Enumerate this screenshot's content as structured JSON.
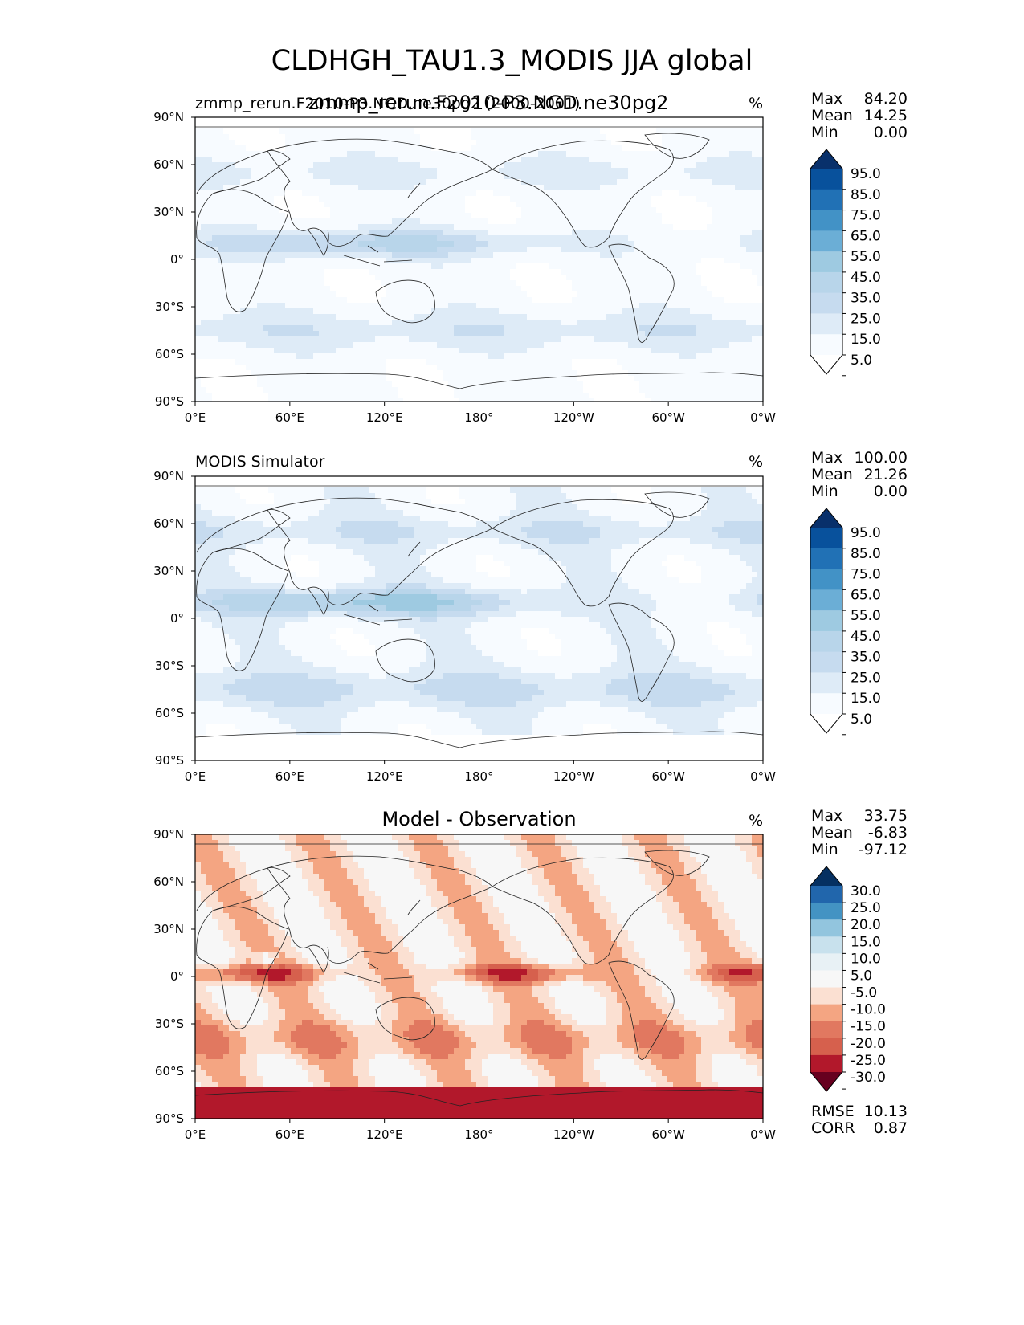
{
  "figure": {
    "title": "CLDHGH_TAU1.3_MODIS JJA global"
  },
  "panels": [
    {
      "id": "test",
      "title_left": "zmmp_rerun.F2010-P3.NGD.ne30pg2 (2000-2001)",
      "title_overlay": "zmmp_rerun.F2010-P3.NGD.ne30pg2",
      "title_center": "",
      "units": "%",
      "stats": {
        "max_label": "Max",
        "max": "84.20",
        "mean_label": "Mean",
        "mean": "14.25",
        "min_label": "Min",
        "min": "0.00"
      },
      "colorbar": {
        "levels": [
          "95.0",
          "85.0",
          "75.0",
          "65.0",
          "55.0",
          "45.0",
          "35.0",
          "25.0",
          "15.0",
          "5.0"
        ],
        "colors": [
          "#08306b",
          "#08519c",
          "#2171b5",
          "#4292c6",
          "#6baed6",
          "#9ecae1",
          "#b8d5ea",
          "#c6dbef",
          "#deebf7",
          "#f7fbff",
          "#ffffff"
        ]
      }
    },
    {
      "id": "reference",
      "title_left": "MODIS Simulator",
      "title_center": "",
      "units": "%",
      "stats": {
        "max_label": "Max",
        "max": "100.00",
        "mean_label": "Mean",
        "mean": "21.26",
        "min_label": "Min",
        "min": "0.00"
      },
      "colorbar": {
        "levels": [
          "95.0",
          "85.0",
          "75.0",
          "65.0",
          "55.0",
          "45.0",
          "35.0",
          "25.0",
          "15.0",
          "5.0"
        ],
        "colors": [
          "#08306b",
          "#08519c",
          "#2171b5",
          "#4292c6",
          "#6baed6",
          "#9ecae1",
          "#b8d5ea",
          "#c6dbef",
          "#deebf7",
          "#f7fbff",
          "#ffffff"
        ]
      }
    },
    {
      "id": "difference",
      "title_left": "",
      "title_center": "Model - Observation",
      "units": "%",
      "stats": {
        "max_label": "Max",
        "max": "33.75",
        "mean_label": "Mean",
        "mean": "-6.83",
        "min_label": "Min",
        "min": "-97.12"
      },
      "metrics": {
        "rmse_label": "RMSE",
        "rmse": "10.13",
        "corr_label": "CORR",
        "corr": "0.87"
      },
      "colorbar": {
        "levels": [
          "30.0",
          "25.0",
          "20.0",
          "15.0",
          "10.0",
          "5.0",
          "-5.0",
          "-10.0",
          "-15.0",
          "-20.0",
          "-25.0",
          "-30.0"
        ],
        "colors": [
          "#053061",
          "#2166ac",
          "#4393c3",
          "#92c5de",
          "#c8e1ed",
          "#e8f1f5",
          "#f7f7f7",
          "#fbe0d2",
          "#f4a582",
          "#e17860",
          "#d6604d",
          "#b2182b",
          "#67001f"
        ]
      }
    }
  ],
  "axes": {
    "x_ticks": [
      "0°E",
      "60°E",
      "120°E",
      "180°",
      "120°W",
      "60°W",
      "0°W"
    ],
    "y_ticks": [
      "90°N",
      "60°N",
      "30°N",
      "0°",
      "30°S",
      "60°S",
      "90°S"
    ]
  },
  "chart_data": [
    {
      "type": "heatmap",
      "title": "zmmp_rerun.F2010-P3.NGD.ne30pg2 (2000-2001)",
      "units": "%",
      "x_range": [
        0,
        360
      ],
      "y_range": [
        -90,
        90
      ],
      "levels": [
        5,
        15,
        25,
        35,
        45,
        55,
        65,
        75,
        85,
        95
      ],
      "max": 84.2,
      "mean": 14.25,
      "min": 0.0
    },
    {
      "type": "heatmap",
      "title": "MODIS Simulator",
      "units": "%",
      "x_range": [
        0,
        360
      ],
      "y_range": [
        -90,
        90
      ],
      "levels": [
        5,
        15,
        25,
        35,
        45,
        55,
        65,
        75,
        85,
        95
      ],
      "max": 100.0,
      "mean": 21.26,
      "min": 0.0
    },
    {
      "type": "heatmap",
      "title": "Model - Observation",
      "units": "%",
      "x_range": [
        0,
        360
      ],
      "y_range": [
        -90,
        90
      ],
      "levels": [
        -30,
        -25,
        -20,
        -15,
        -10,
        -5,
        5,
        10,
        15,
        20,
        25,
        30
      ],
      "max": 33.75,
      "mean": -6.83,
      "min": -97.12,
      "rmse": 10.13,
      "corr": 0.87
    }
  ]
}
